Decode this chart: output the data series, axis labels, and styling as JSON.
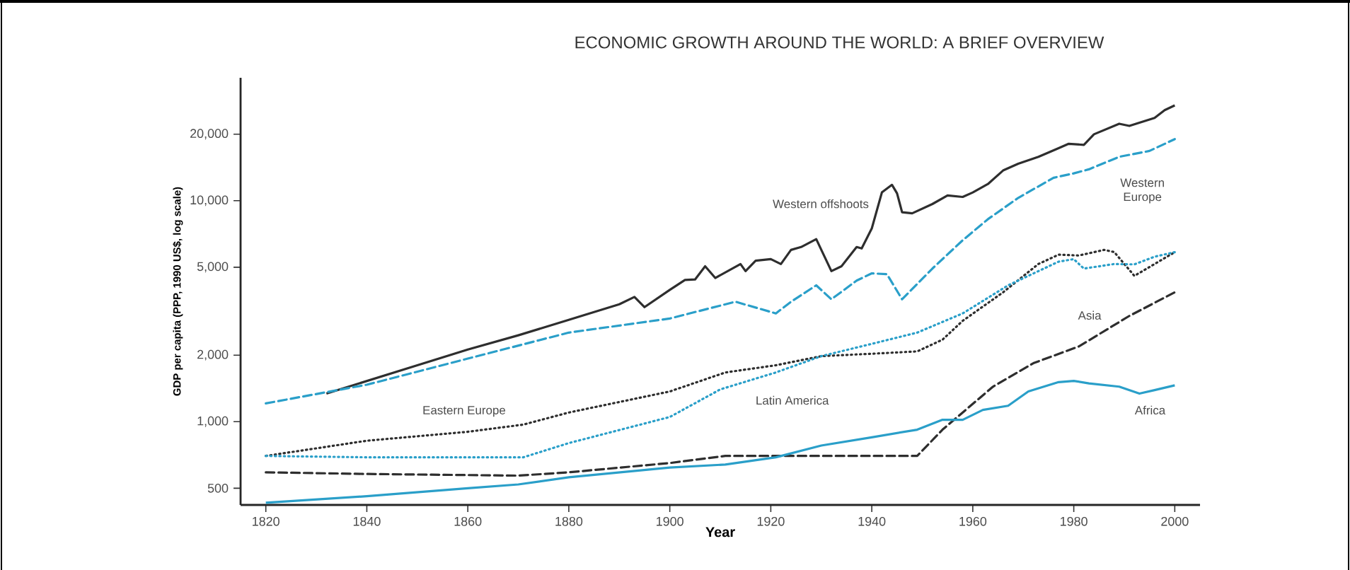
{
  "chart_data": {
    "type": "line",
    "title": "ECONOMIC GROWTH AROUND THE WORLD: A BRIEF OVERVIEW",
    "xlabel": "Year",
    "ylabel": "GDP per capita (PPP, 1990 US$, log scale)",
    "log": "y",
    "grid": false,
    "legend": false,
    "marker": "none",
    "xlim": [
      1815,
      2005
    ],
    "xticks": [
      1820,
      1840,
      1860,
      1880,
      1900,
      1920,
      1940,
      1960,
      1980,
      2000
    ],
    "ylim": [
      420,
      36000
    ],
    "yticks": [
      500,
      {
        "value": 1000,
        "label": "1,000"
      },
      {
        "value": 2000,
        "label": "2,000"
      },
      {
        "value": 5000,
        "label": "5,000"
      },
      {
        "value": 10000,
        "label": "10,000"
      },
      {
        "value": 20000,
        "label": "20,000"
      }
    ],
    "series": [
      {
        "name": "Western offshoots",
        "color": "#2e2e2e",
        "line_style": "solid",
        "x": [
          1832,
          1850,
          1860,
          1870,
          1880,
          1890,
          1893,
          1895,
          1900,
          1903,
          1905,
          1907,
          1909,
          1914,
          1915,
          1917,
          1920,
          1922,
          1924,
          1926,
          1929,
          1932,
          1934,
          1937,
          1938,
          1940,
          1942,
          1944,
          1945,
          1946,
          1948,
          1952,
          1955,
          1958,
          1960,
          1963,
          1966,
          1969,
          1973,
          1977,
          1979,
          1982,
          1984,
          1989,
          1991,
          1996,
          1998,
          2000
        ],
        "values": [
          1340,
          1800,
          2120,
          2460,
          2890,
          3400,
          3670,
          3300,
          3950,
          4380,
          4400,
          5050,
          4470,
          5170,
          4800,
          5350,
          5440,
          5170,
          5990,
          6170,
          6700,
          4800,
          5050,
          6170,
          6080,
          7490,
          10900,
          11800,
          10800,
          8870,
          8770,
          9660,
          10560,
          10400,
          10900,
          11900,
          13700,
          14700,
          15800,
          17300,
          18100,
          17900,
          19980,
          22300,
          21800,
          23700,
          25700,
          27000
        ]
      },
      {
        "name": "Western Europe",
        "color": "#2a9fc9",
        "line_style": "dashed",
        "x": [
          1820,
          1840,
          1860,
          1880,
          1900,
          1913,
          1921,
          1924,
          1929,
          1932,
          1937,
          1940,
          1943,
          1946,
          1952,
          1958,
          1963,
          1969,
          1976,
          1980,
          1983,
          1989,
          1995,
          2000
        ],
        "values": [
          1210,
          1470,
          1930,
          2530,
          2930,
          3490,
          3090,
          3490,
          4140,
          3580,
          4350,
          4690,
          4650,
          3580,
          4930,
          6620,
          8250,
          10300,
          12700,
          13300,
          13870,
          15800,
          16800,
          19000
        ]
      },
      {
        "name": "Eastern Europe",
        "color": "#2e2e2e",
        "line_style": "dotted",
        "x": [
          1820,
          1840,
          1860,
          1871,
          1880,
          1900,
          1911,
          1921,
          1930,
          1940,
          1949,
          1954,
          1958,
          1966,
          1973,
          1977,
          1981,
          1986,
          1988,
          1992,
          1996,
          2000
        ],
        "values": [
          700,
          820,
          900,
          970,
          1100,
          1370,
          1670,
          1800,
          1980,
          2030,
          2080,
          2350,
          2860,
          3850,
          5170,
          5700,
          5650,
          5990,
          5860,
          4570,
          5170,
          5850
        ]
      },
      {
        "name": "Latin America",
        "color": "#2a9fc9",
        "line_style": "dotted",
        "x": [
          1820,
          1840,
          1860,
          1871,
          1880,
          1900,
          1910,
          1921,
          1930,
          1940,
          1949,
          1958,
          1967,
          1977,
          1980,
          1982,
          1988,
          1992,
          1996,
          2000
        ],
        "values": [
          700,
          690,
          690,
          690,
          800,
          1050,
          1400,
          1670,
          1980,
          2250,
          2530,
          3090,
          4140,
          5300,
          5440,
          4930,
          5170,
          5150,
          5580,
          5850
        ]
      },
      {
        "name": "Asia",
        "color": "#2e2e2e",
        "line_style": "dashed",
        "x": [
          1820,
          1840,
          1870,
          1880,
          1900,
          1911,
          1949,
          1954,
          1964,
          1972,
          1981,
          1991,
          2000
        ],
        "values": [
          590,
          580,
          570,
          590,
          650,
          700,
          700,
          920,
          1440,
          1840,
          2190,
          3010,
          3850
        ]
      },
      {
        "name": "Africa",
        "color": "#2a9fc9",
        "line_style": "solid",
        "x": [
          1820,
          1840,
          1860,
          1870,
          1880,
          1900,
          1911,
          1921,
          1930,
          1940,
          1949,
          1954,
          1958,
          1962,
          1967,
          1971,
          1977,
          1980,
          1983,
          1989,
          1993,
          1996,
          2000
        ],
        "values": [
          430,
          460,
          500,
          520,
          560,
          620,
          640,
          690,
          780,
          850,
          920,
          1020,
          1020,
          1130,
          1180,
          1370,
          1510,
          1530,
          1490,
          1440,
          1340,
          1390,
          1460
        ]
      }
    ]
  }
}
